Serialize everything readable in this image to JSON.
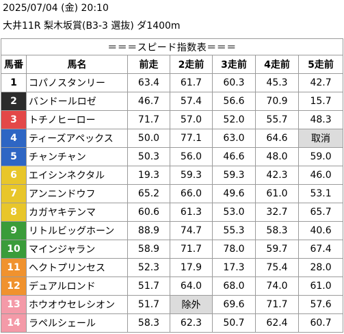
{
  "header": {
    "date_time": "2025/07/04 (金) 20:10",
    "race": "大井11R 梨木坂賞(B3-3 選抜) ダ1400m"
  },
  "table": {
    "title": "＝＝＝スピード指数表＝＝＝",
    "columns": [
      "馬番",
      "馬名",
      "前走",
      "2走前",
      "3走前",
      "4走前",
      "5走前"
    ],
    "rows": [
      {
        "no": "1",
        "name": "コパノスタンリー",
        "r1": "63.4",
        "r2": "61.7",
        "r3": "60.3",
        "r4": "45.3",
        "r5": "42.7",
        "bg": "#ffffff",
        "fg": "#000000"
      },
      {
        "no": "2",
        "name": "バンドールロゼ",
        "r1": "46.7",
        "r2": "57.4",
        "r3": "56.6",
        "r4": "70.9",
        "r5": "15.7",
        "bg": "#2b2b2b",
        "fg": "#ffffff"
      },
      {
        "no": "3",
        "name": "トチノヒーロー",
        "r1": "71.7",
        "r2": "57.0",
        "r3": "52.0",
        "r4": "55.7",
        "r5": "48.3",
        "bg": "#e34848",
        "fg": "#ffffff"
      },
      {
        "no": "4",
        "name": "ティーズアペックス",
        "r1": "50.0",
        "r2": "77.1",
        "r3": "63.0",
        "r4": "64.6",
        "r5": "取消",
        "bg": "#2e66c4",
        "fg": "#ffffff"
      },
      {
        "no": "5",
        "name": "チャンチャン",
        "r1": "50.3",
        "r2": "56.0",
        "r3": "46.6",
        "r4": "48.0",
        "r5": "59.0",
        "bg": "#2e66c4",
        "fg": "#ffffff"
      },
      {
        "no": "6",
        "name": "エイシンネクタル",
        "r1": "19.3",
        "r2": "59.3",
        "r3": "59.3",
        "r4": "42.3",
        "r5": "46.0",
        "bg": "#e8c62a",
        "fg": "#ffffff"
      },
      {
        "no": "7",
        "name": "アンニンドウフ",
        "r1": "65.2",
        "r2": "66.0",
        "r3": "49.6",
        "r4": "61.0",
        "r5": "53.1",
        "bg": "#e8c62a",
        "fg": "#ffffff"
      },
      {
        "no": "8",
        "name": "カガヤキテンマ",
        "r1": "60.6",
        "r2": "61.3",
        "r3": "53.0",
        "r4": "32.7",
        "r5": "65.7",
        "bg": "#e8c62a",
        "fg": "#ffffff"
      },
      {
        "no": "9",
        "name": "リトルビッグホーン",
        "r1": "88.9",
        "r2": "74.7",
        "r3": "55.3",
        "r4": "58.3",
        "r5": "40.6",
        "bg": "#3a9c3a",
        "fg": "#ffffff"
      },
      {
        "no": "10",
        "name": "マインジャラン",
        "r1": "58.9",
        "r2": "71.7",
        "r3": "78.0",
        "r4": "59.7",
        "r5": "67.4",
        "bg": "#3a9c3a",
        "fg": "#ffffff"
      },
      {
        "no": "11",
        "name": "ヘクトプリンセス",
        "r1": "52.3",
        "r2": "17.9",
        "r3": "17.3",
        "r4": "75.4",
        "r5": "28.0",
        "bg": "#f0922e",
        "fg": "#ffffff"
      },
      {
        "no": "12",
        "name": "デュアルロンド",
        "r1": "51.7",
        "r2": "64.0",
        "r3": "68.0",
        "r4": "74.0",
        "r5": "61.0",
        "bg": "#f0922e",
        "fg": "#ffffff"
      },
      {
        "no": "13",
        "name": "ホウオウセレシオン",
        "r1": "51.7",
        "r2": "除外",
        "r3": "69.6",
        "r4": "71.7",
        "r5": "57.6",
        "bg": "#f49aa8",
        "fg": "#ffffff"
      },
      {
        "no": "14",
        "name": "ラペルシェール",
        "r1": "58.3",
        "r2": "62.3",
        "r3": "50.7",
        "r4": "62.4",
        "r5": "60.7",
        "bg": "#f49aa8",
        "fg": "#ffffff"
      }
    ]
  }
}
